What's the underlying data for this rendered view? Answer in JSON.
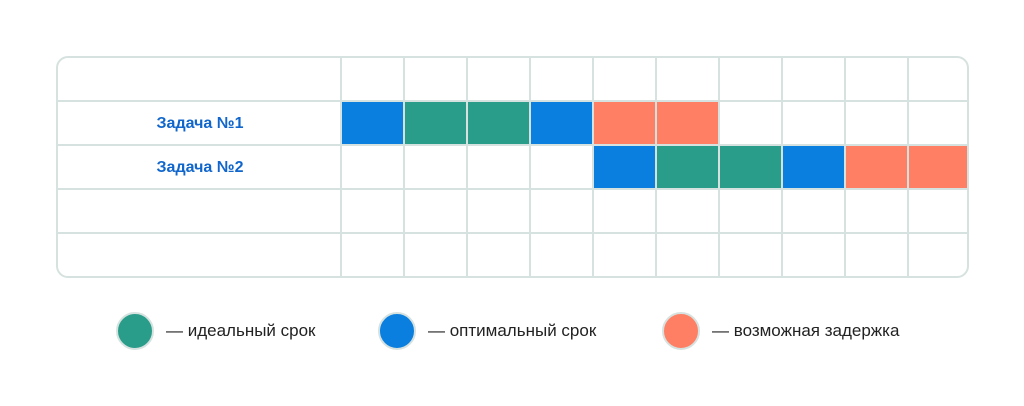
{
  "gantt": {
    "time_columns": 10,
    "rows": [
      {
        "label": "",
        "cells": [
          null,
          null,
          null,
          null,
          null,
          null,
          null,
          null,
          null,
          null
        ]
      },
      {
        "label": "Задача №1",
        "cells": [
          "optimal",
          "ideal",
          "ideal",
          "optimal",
          "delay",
          "delay",
          null,
          null,
          null,
          null
        ]
      },
      {
        "label": "Задача №2",
        "cells": [
          null,
          null,
          null,
          null,
          "optimal",
          "ideal",
          "ideal",
          "optimal",
          "delay",
          "delay"
        ]
      },
      {
        "label": "",
        "cells": [
          null,
          null,
          null,
          null,
          null,
          null,
          null,
          null,
          null,
          null
        ]
      },
      {
        "label": "",
        "cells": [
          null,
          null,
          null,
          null,
          null,
          null,
          null,
          null,
          null,
          null
        ]
      }
    ]
  },
  "legend": [
    {
      "key": "ideal",
      "label": "— идеальный срок",
      "color": "#2a9d8a"
    },
    {
      "key": "optimal",
      "label": "— оптимальный срок",
      "color": "#0b7fe0"
    },
    {
      "key": "delay",
      "label": "— возможная задержка",
      "color": "#fe7f64"
    }
  ],
  "colors": {
    "grid_line": "#d6e2df",
    "task_label": "#1066cc",
    "legend_text": "#222222"
  }
}
